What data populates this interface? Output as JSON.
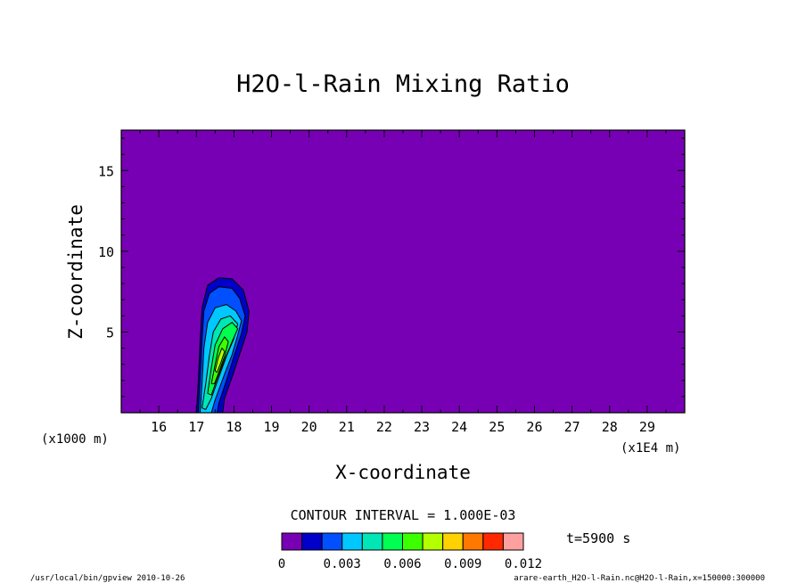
{
  "chart_data": {
    "type": "heatmap",
    "title": "H2O-l-Rain Mixing Ratio",
    "xlabel": "X-coordinate",
    "ylabel": "Z-coordinate",
    "x_unit_note": "(x1E4 m)",
    "y_unit_note": "(x1000 m)",
    "xlim": [
      15,
      30
    ],
    "ylim": [
      0,
      17.5
    ],
    "x_ticks": [
      "16",
      "17",
      "18",
      "19",
      "20",
      "21",
      "22",
      "23",
      "24",
      "25",
      "26",
      "27",
      "28",
      "29"
    ],
    "y_ticks": [
      "5",
      "10",
      "15"
    ],
    "contour_interval_text": "CONTOUR INTERVAL = 1.000E-03",
    "time_label": "t=5900 s",
    "colorbar": {
      "colors": [
        "#7800b4",
        "#0000c8",
        "#0050ff",
        "#00c8ff",
        "#00e6b4",
        "#00ff50",
        "#3cff00",
        "#b4ff00",
        "#ffd200",
        "#ff7800",
        "#ff2800",
        "#ffa0a0"
      ],
      "tick_labels": [
        "0",
        "0.003",
        "0.006",
        "0.009",
        "0.012"
      ]
    },
    "regions": [
      {
        "level": 1,
        "points": [
          [
            17.0,
            0
          ],
          [
            17.05,
            2.0
          ],
          [
            17.1,
            4.5
          ],
          [
            17.15,
            6.5
          ],
          [
            17.3,
            7.9
          ],
          [
            17.6,
            8.35
          ],
          [
            17.95,
            8.3
          ],
          [
            18.25,
            7.6
          ],
          [
            18.4,
            6.3
          ],
          [
            18.35,
            5.0
          ],
          [
            18.15,
            3.6
          ],
          [
            17.95,
            2.2
          ],
          [
            17.75,
            0.9
          ],
          [
            17.7,
            0
          ]
        ]
      },
      {
        "level": 2,
        "points": [
          [
            17.05,
            0
          ],
          [
            17.1,
            2.2
          ],
          [
            17.15,
            4.5
          ],
          [
            17.2,
            6.3
          ],
          [
            17.35,
            7.4
          ],
          [
            17.6,
            7.8
          ],
          [
            17.95,
            7.7
          ],
          [
            18.15,
            7.1
          ],
          [
            18.3,
            6.0
          ],
          [
            18.2,
            4.9
          ],
          [
            18.0,
            3.5
          ],
          [
            17.8,
            2.0
          ],
          [
            17.6,
            0.6
          ],
          [
            17.55,
            0
          ]
        ]
      },
      {
        "level": 3,
        "points": [
          [
            17.1,
            0
          ],
          [
            17.15,
            1.8
          ],
          [
            17.2,
            4.0
          ],
          [
            17.3,
            5.6
          ],
          [
            17.5,
            6.5
          ],
          [
            17.8,
            6.7
          ],
          [
            18.05,
            6.3
          ],
          [
            18.2,
            5.7
          ],
          [
            18.1,
            4.8
          ],
          [
            17.95,
            3.6
          ],
          [
            17.75,
            2.4
          ],
          [
            17.5,
            0.8
          ],
          [
            17.4,
            0
          ]
        ]
      },
      {
        "level": 4,
        "points": [
          [
            17.15,
            0.3
          ],
          [
            17.25,
            1.8
          ],
          [
            17.35,
            3.6
          ],
          [
            17.45,
            5.0
          ],
          [
            17.65,
            5.8
          ],
          [
            17.9,
            6.0
          ],
          [
            18.1,
            5.5
          ],
          [
            18.0,
            4.6
          ],
          [
            17.8,
            3.5
          ],
          [
            17.6,
            2.2
          ],
          [
            17.4,
            0.9
          ],
          [
            17.25,
            0.2
          ]
        ]
      },
      {
        "level": 5,
        "points": [
          [
            17.3,
            1.2
          ],
          [
            17.4,
            2.8
          ],
          [
            17.5,
            4.2
          ],
          [
            17.7,
            5.2
          ],
          [
            17.95,
            5.6
          ],
          [
            18.1,
            5.2
          ],
          [
            17.95,
            4.4
          ],
          [
            17.75,
            3.3
          ],
          [
            17.55,
            2.1
          ],
          [
            17.4,
            1.1
          ]
        ]
      },
      {
        "level": 6,
        "points": [
          [
            17.4,
            1.8
          ],
          [
            17.5,
            3.0
          ],
          [
            17.6,
            4.1
          ],
          [
            17.75,
            4.7
          ],
          [
            17.85,
            4.4
          ],
          [
            17.75,
            3.5
          ],
          [
            17.6,
            2.5
          ],
          [
            17.48,
            1.8
          ]
        ]
      },
      {
        "level": 7,
        "points": [
          [
            17.5,
            2.6
          ],
          [
            17.58,
            3.4
          ],
          [
            17.68,
            4.0
          ],
          [
            17.75,
            3.8
          ],
          [
            17.65,
            3.1
          ],
          [
            17.55,
            2.5
          ]
        ]
      }
    ]
  },
  "footer": {
    "left": "/usr/local/bin/gpview  2010-10-26",
    "right": "arare-earth_H2O-l-Rain.nc@H2O-l-Rain,x=150000:300000"
  }
}
